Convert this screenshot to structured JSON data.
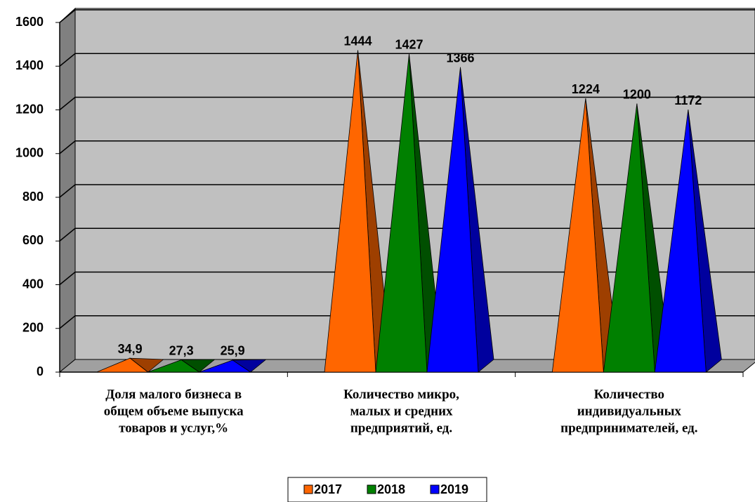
{
  "chart_data": {
    "type": "pyramid",
    "categories": [
      [
        "Доля малого бизнеса в",
        "общем объеме выпуска",
        "товаров и услуг,%"
      ],
      [
        "Количество  микро,",
        "малых и средних",
        "предприятий, ед."
      ],
      [
        "Количество",
        "индивидуальных",
        "предпринимателей, ед."
      ]
    ],
    "series": [
      {
        "name": "2017",
        "color": "#ff6600",
        "values": [
          34.9,
          1444,
          1224
        ],
        "value_labels": [
          "34,9",
          "1444",
          "1224"
        ]
      },
      {
        "name": "2018",
        "color": "#008000",
        "values": [
          27.3,
          1427,
          1200
        ],
        "value_labels": [
          "27,3",
          "1427",
          "1200"
        ]
      },
      {
        "name": "2019",
        "color": "#0000ff",
        "values": [
          25.9,
          1366,
          1172
        ],
        "value_labels": [
          "25,9",
          "1366",
          "1172"
        ]
      }
    ],
    "ylim": [
      0,
      1600
    ],
    "yticks": [
      0,
      200,
      400,
      600,
      800,
      1000,
      1200,
      1400,
      1600
    ],
    "grid": true,
    "legend": "bottom"
  }
}
